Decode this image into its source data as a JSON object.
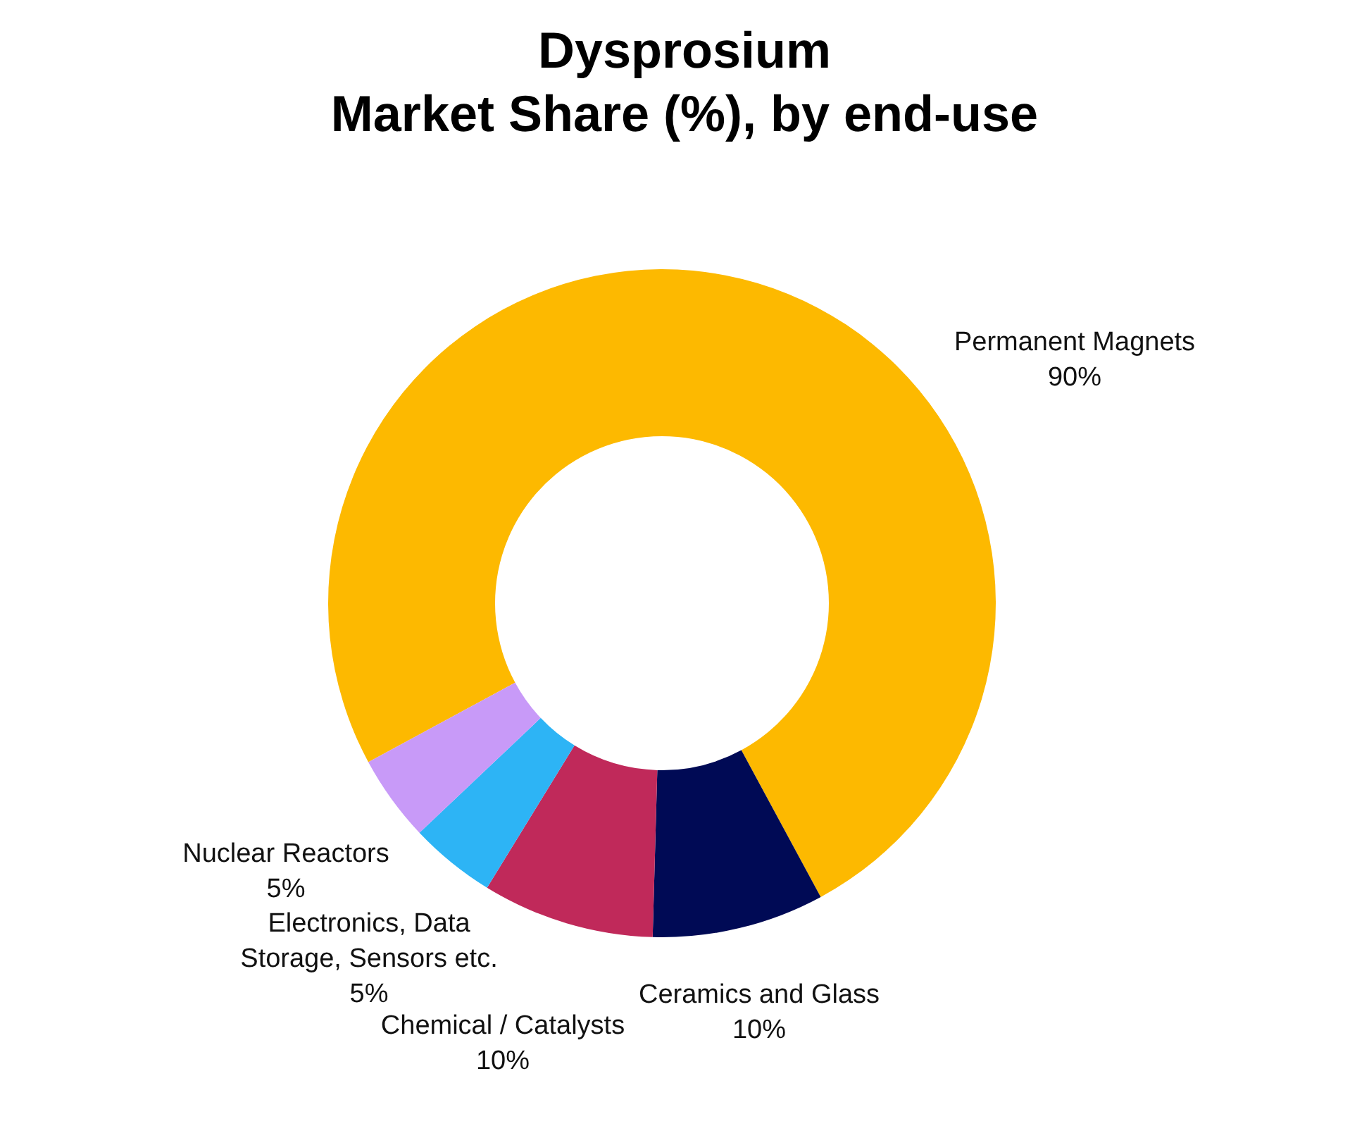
{
  "chart_data": {
    "type": "donut",
    "title": "Dysprosium",
    "subtitle": "Market Share (%), by end-use",
    "categories": [
      "Permanent Magnets",
      "Ceramics and Glass",
      "Chemical / Catalysts",
      "Electronics, Data Storage, Sensors etc.",
      "Nuclear Reactors"
    ],
    "values": [
      90,
      10,
      10,
      5,
      5
    ],
    "value_labels": [
      "90%",
      "10%",
      "10%",
      "5%",
      "5%"
    ],
    "colors": [
      "#fdb900",
      "#000a55",
      "#c0295a",
      "#2db4f5",
      "#c89af8"
    ]
  }
}
